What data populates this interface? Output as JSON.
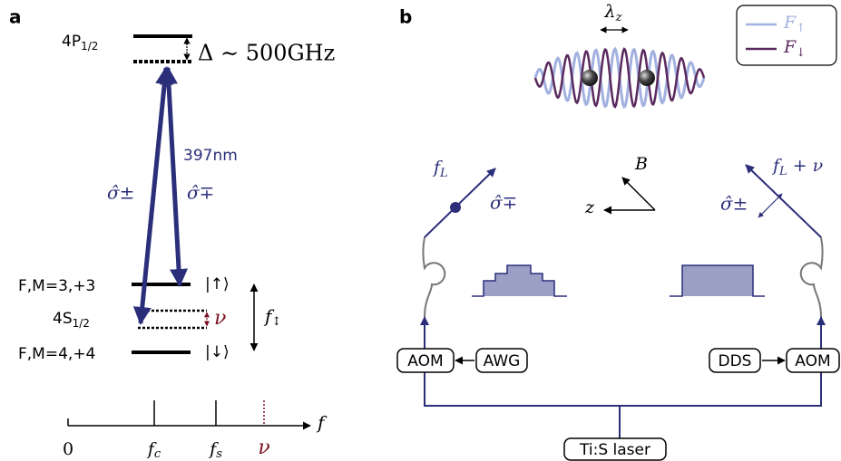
{
  "panel_a": {
    "label": "a",
    "upper_level": {
      "main": "4P",
      "sub": "1/2"
    },
    "detuning": "Δ ∼ 500GHz",
    "wavelength": "397nm",
    "sigma_left": "σ̂±",
    "sigma_right": "σ̂∓",
    "state_up": "F,M=3,+3",
    "ket_up": "|↑⟩",
    "lower_level": {
      "main": "4S",
      "sub": "1/2"
    },
    "nu": "ν",
    "splitting": {
      "main": "f",
      "sub": "↕"
    },
    "state_down": "F,M=4,+4",
    "ket_down": "|↓⟩",
    "axis": {
      "label": "f",
      "ticks": [
        "0",
        {
          "main": "f",
          "sub": "c"
        },
        {
          "main": "f",
          "sub": "s"
        },
        "ν"
      ]
    }
  },
  "panel_b": {
    "label": "b",
    "lambda": {
      "main": "λ",
      "sub": "z"
    },
    "legend": [
      {
        "main": "F",
        "sub": "↑"
      },
      {
        "main": "F",
        "sub": "↓"
      }
    ],
    "field_B": "B",
    "axis_z": "z",
    "left_beam": {
      "freq": {
        "main": "f",
        "sub": "L"
      },
      "polarization": "σ̂∓"
    },
    "right_beam": {
      "freq": {
        "main": "f",
        "sub": "L",
        "tail": " + ν"
      },
      "polarization": "σ̂±"
    },
    "boxes": [
      "AOM",
      "AWG",
      "DDS",
      "AOM",
      "Ti:S laser"
    ]
  }
}
